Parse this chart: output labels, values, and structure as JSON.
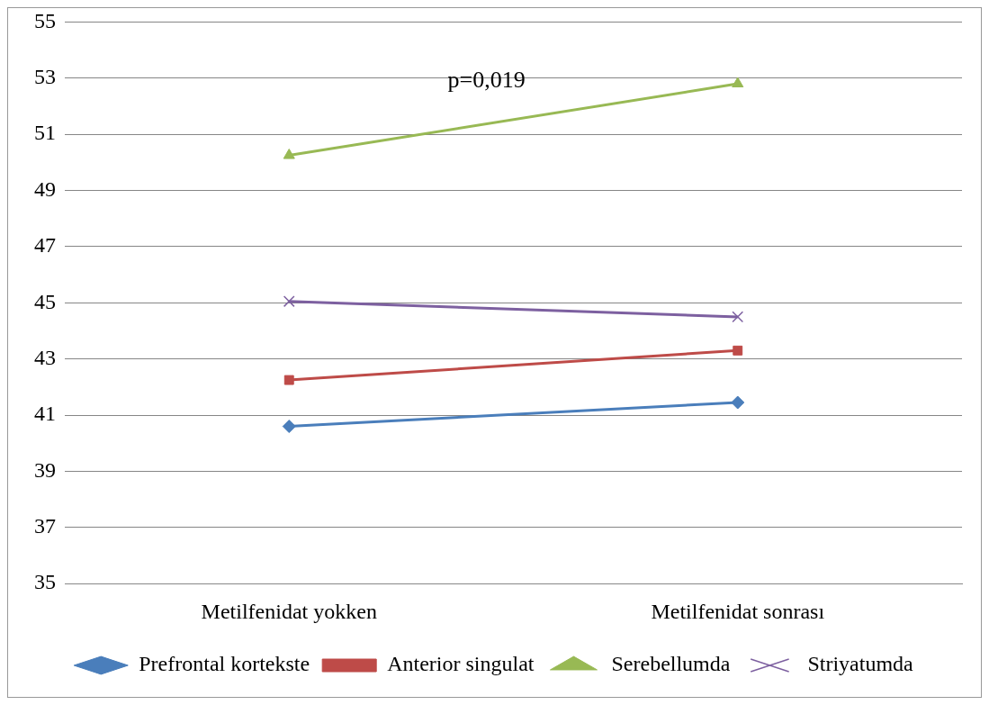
{
  "chart_data": {
    "type": "line",
    "categories": [
      "Metilfenidat yokken",
      "Metilfenidat sonrası"
    ],
    "series": [
      {
        "name": "Prefrontal kortekste",
        "color": "#4a7ebb",
        "values": [
          40.6,
          41.45
        ],
        "marker": "diamond"
      },
      {
        "name": "Anterior singulat",
        "color": "#be4b48",
        "values": [
          42.25,
          43.3
        ],
        "marker": "square"
      },
      {
        "name": "Serebellumda",
        "color": "#98b954",
        "values": [
          50.25,
          52.8
        ],
        "marker": "triangle"
      },
      {
        "name": "Striyatumda",
        "color": "#7d60a0",
        "values": [
          45.05,
          44.5
        ],
        "marker": "cross"
      }
    ],
    "ylim": [
      35,
      55
    ],
    "yticks": [
      35,
      37,
      39,
      41,
      43,
      45,
      47,
      49,
      51,
      53,
      55
    ],
    "grid": "y",
    "legend": "bottom",
    "annotations": [
      "p=0,019"
    ]
  }
}
